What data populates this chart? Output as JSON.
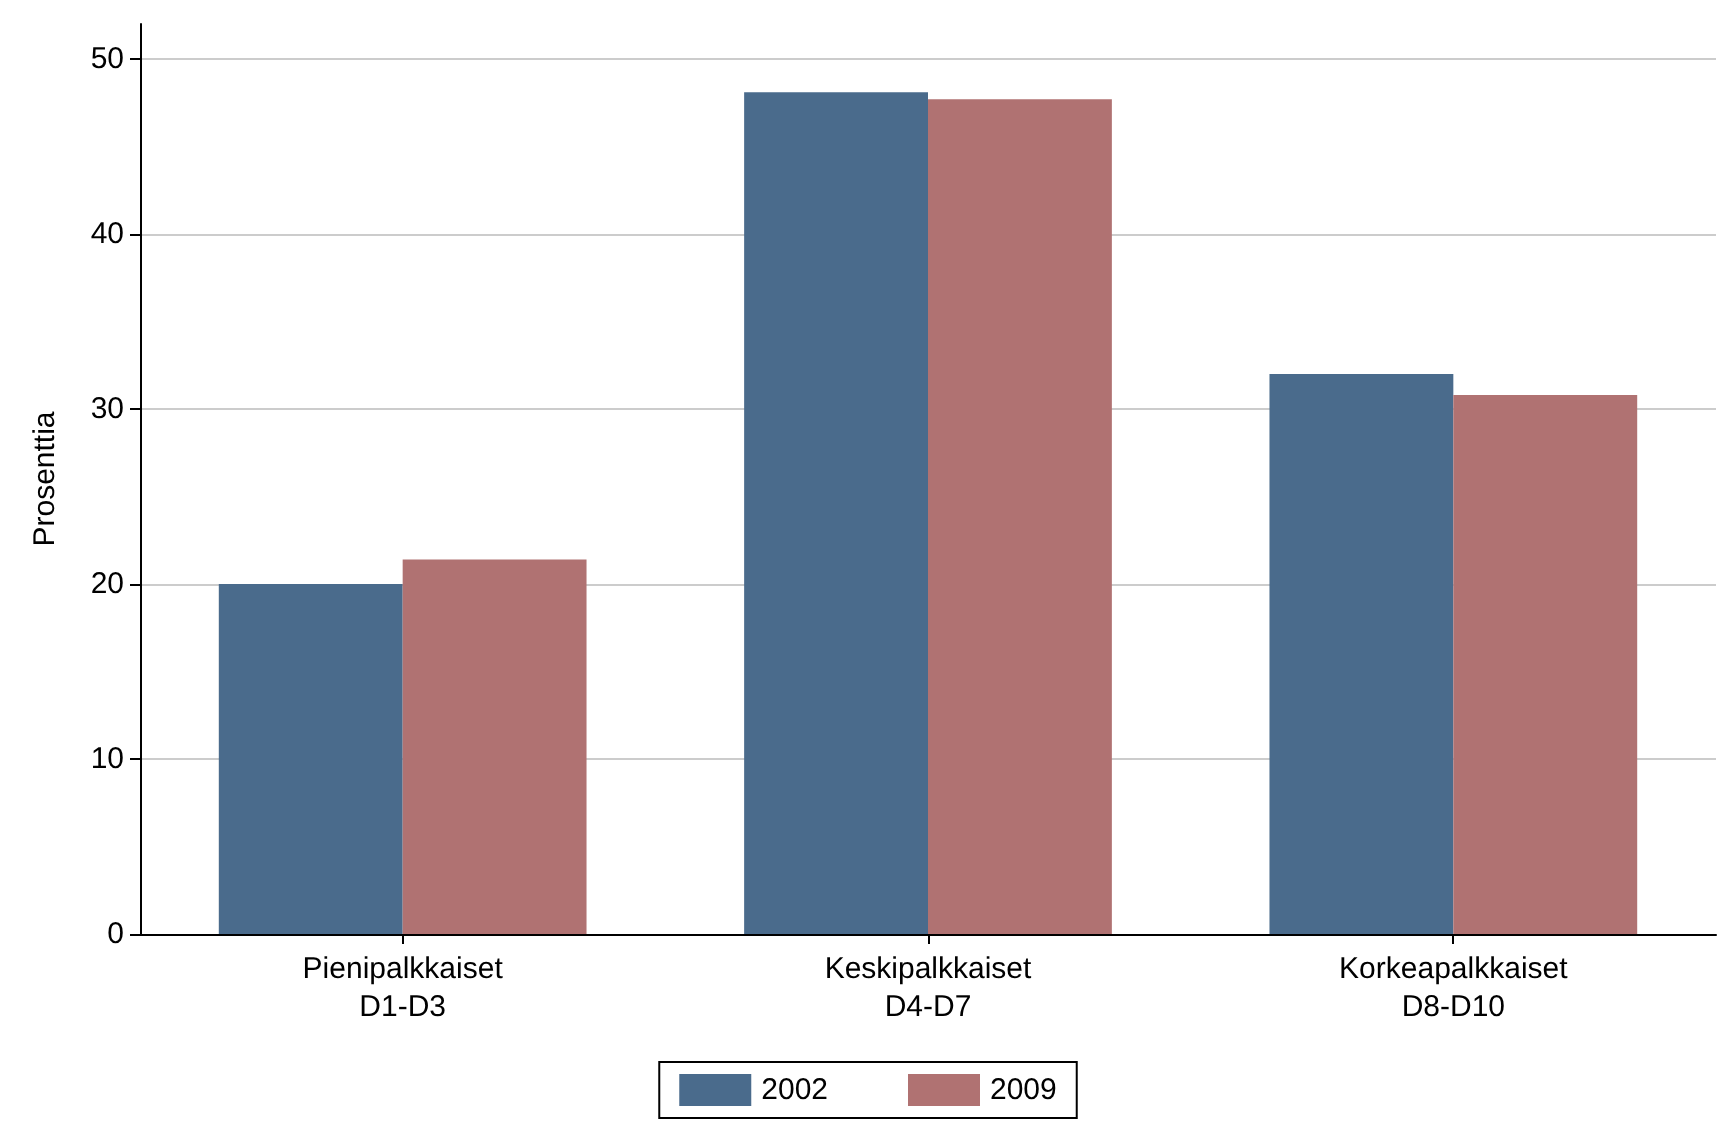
{
  "chart_data": {
    "type": "bar",
    "ylabel": "Prosenttia",
    "categories": [
      "Pienipalkkaiset\nD1-D3",
      "Keskipalkkaiset\nD4-D7",
      "Korkeapalkkaiset\nD8-D10"
    ],
    "series": [
      {
        "name": "2002",
        "color": "#4a6b8c",
        "values": [
          20,
          48.1,
          32
        ]
      },
      {
        "name": "2009",
        "color": "#b07272",
        "values": [
          21.4,
          47.7,
          30.8
        ]
      }
    ],
    "ylim": [
      0,
      52
    ],
    "yticks": [
      0,
      10,
      20,
      30,
      40,
      50
    ],
    "grid": "y",
    "legend": "bottom"
  }
}
